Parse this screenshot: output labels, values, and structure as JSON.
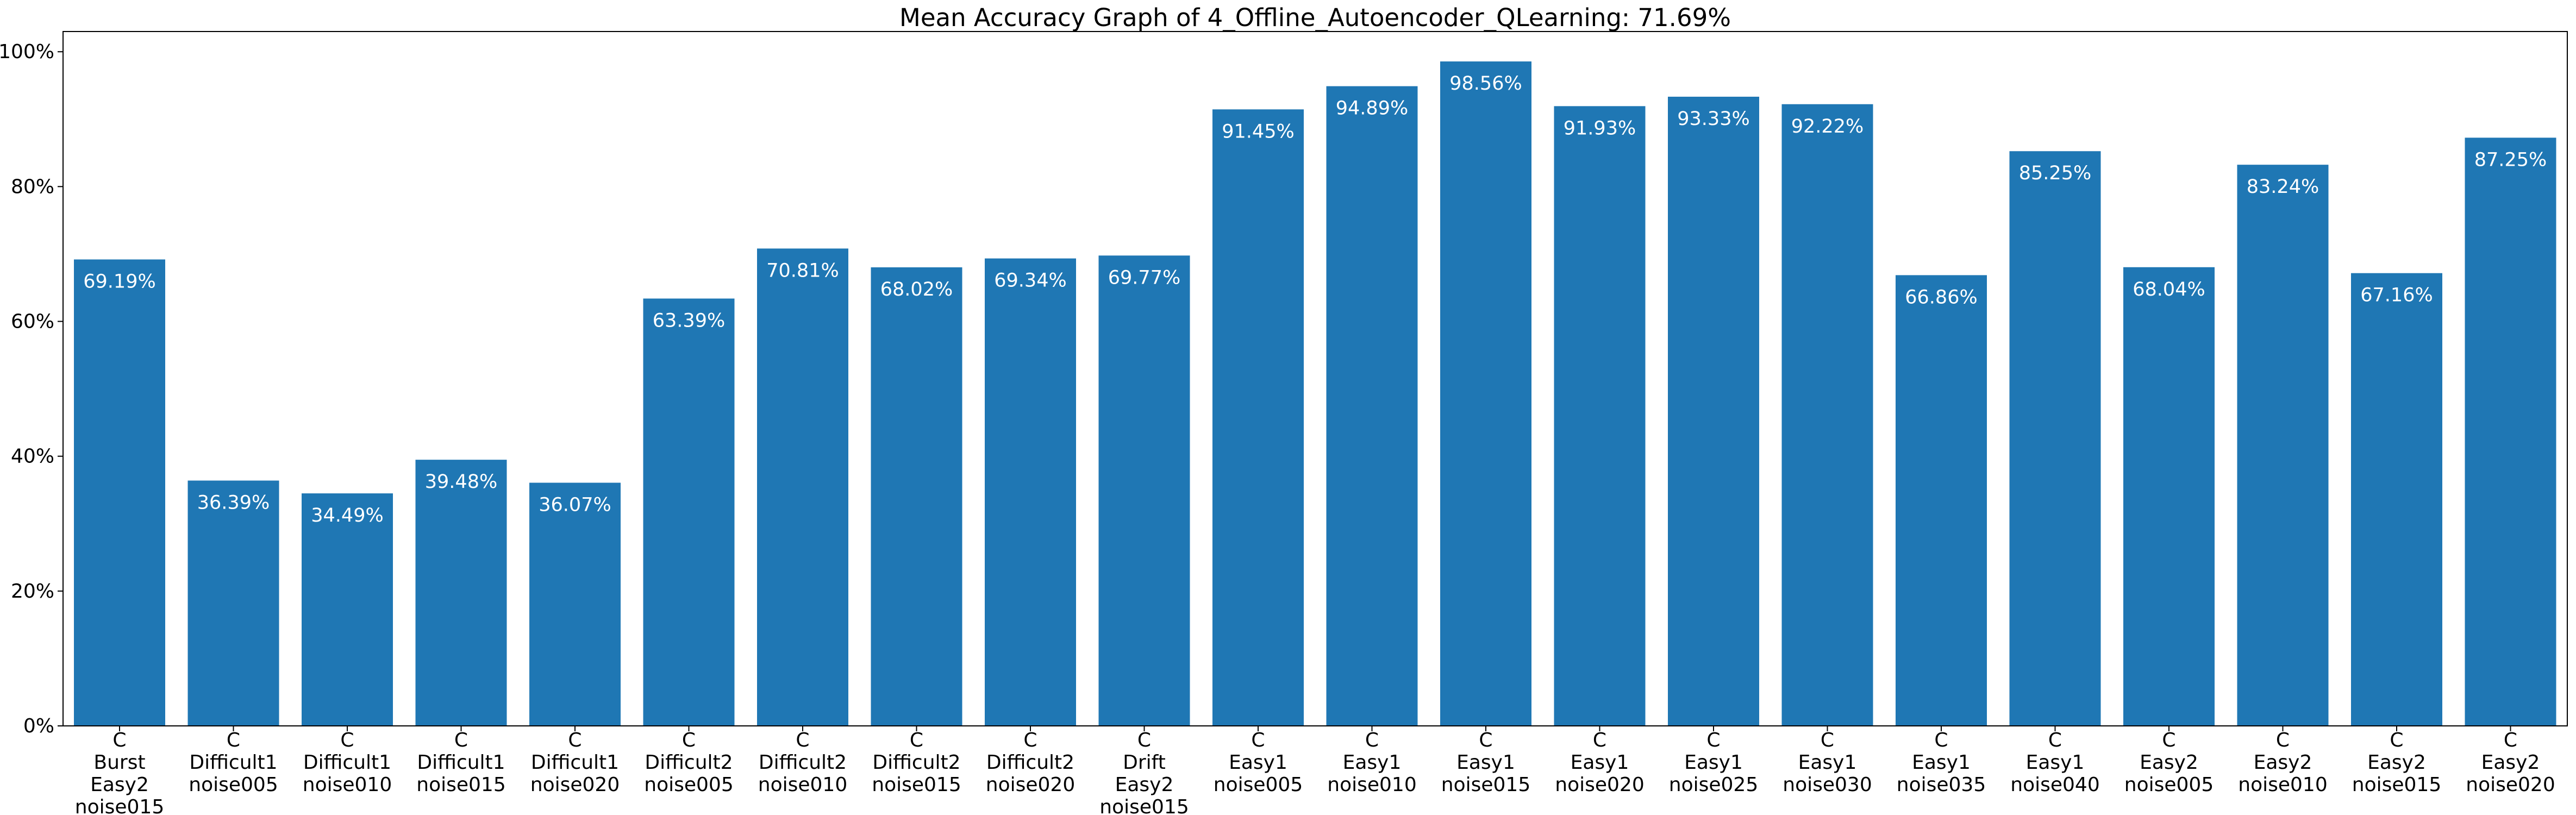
{
  "chart_data": {
    "type": "bar",
    "title": "Mean Accuracy Graph of 4_Offline_Autoencoder_QLearning: 71.69%",
    "xlabel": "",
    "ylabel": "",
    "ylim": [
      0,
      103
    ],
    "y_ticks": [
      "0%",
      "20%",
      "40%",
      "60%",
      "80%",
      "100%"
    ],
    "y_tick_values": [
      0,
      20,
      40,
      60,
      80,
      100
    ],
    "grid": false,
    "bar_color": "#1f77b4",
    "categories": [
      [
        "C",
        "Burst",
        "Easy2",
        "noise015"
      ],
      [
        "C",
        "Difficult1",
        "noise005"
      ],
      [
        "C",
        "Difficult1",
        "noise010"
      ],
      [
        "C",
        "Difficult1",
        "noise015"
      ],
      [
        "C",
        "Difficult1",
        "noise020"
      ],
      [
        "C",
        "Difficult2",
        "noise005"
      ],
      [
        "C",
        "Difficult2",
        "noise010"
      ],
      [
        "C",
        "Difficult2",
        "noise015"
      ],
      [
        "C",
        "Difficult2",
        "noise020"
      ],
      [
        "C",
        "Drift",
        "Easy2",
        "noise015"
      ],
      [
        "C",
        "Easy1",
        "noise005"
      ],
      [
        "C",
        "Easy1",
        "noise010"
      ],
      [
        "C",
        "Easy1",
        "noise015"
      ],
      [
        "C",
        "Easy1",
        "noise020"
      ],
      [
        "C",
        "Easy1",
        "noise025"
      ],
      [
        "C",
        "Easy1",
        "noise030"
      ],
      [
        "C",
        "Easy1",
        "noise035"
      ],
      [
        "C",
        "Easy1",
        "noise040"
      ],
      [
        "C",
        "Easy2",
        "noise005"
      ],
      [
        "C",
        "Easy2",
        "noise010"
      ],
      [
        "C",
        "Easy2",
        "noise015"
      ],
      [
        "C",
        "Easy2",
        "noise020"
      ]
    ],
    "values": [
      69.19,
      36.39,
      34.49,
      39.48,
      36.07,
      63.39,
      70.81,
      68.02,
      69.34,
      69.77,
      91.45,
      94.89,
      98.56,
      91.93,
      93.33,
      92.22,
      66.86,
      85.25,
      68.04,
      83.24,
      67.16,
      87.25
    ],
    "data_labels": [
      "69.19%",
      "36.39%",
      "34.49%",
      "39.48%",
      "36.07%",
      "63.39%",
      "70.81%",
      "68.02%",
      "69.34%",
      "69.77%",
      "91.45%",
      "94.89%",
      "98.56%",
      "91.93%",
      "93.33%",
      "92.22%",
      "66.86%",
      "85.25%",
      "68.04%",
      "83.24%",
      "67.16%",
      "87.25%"
    ]
  }
}
